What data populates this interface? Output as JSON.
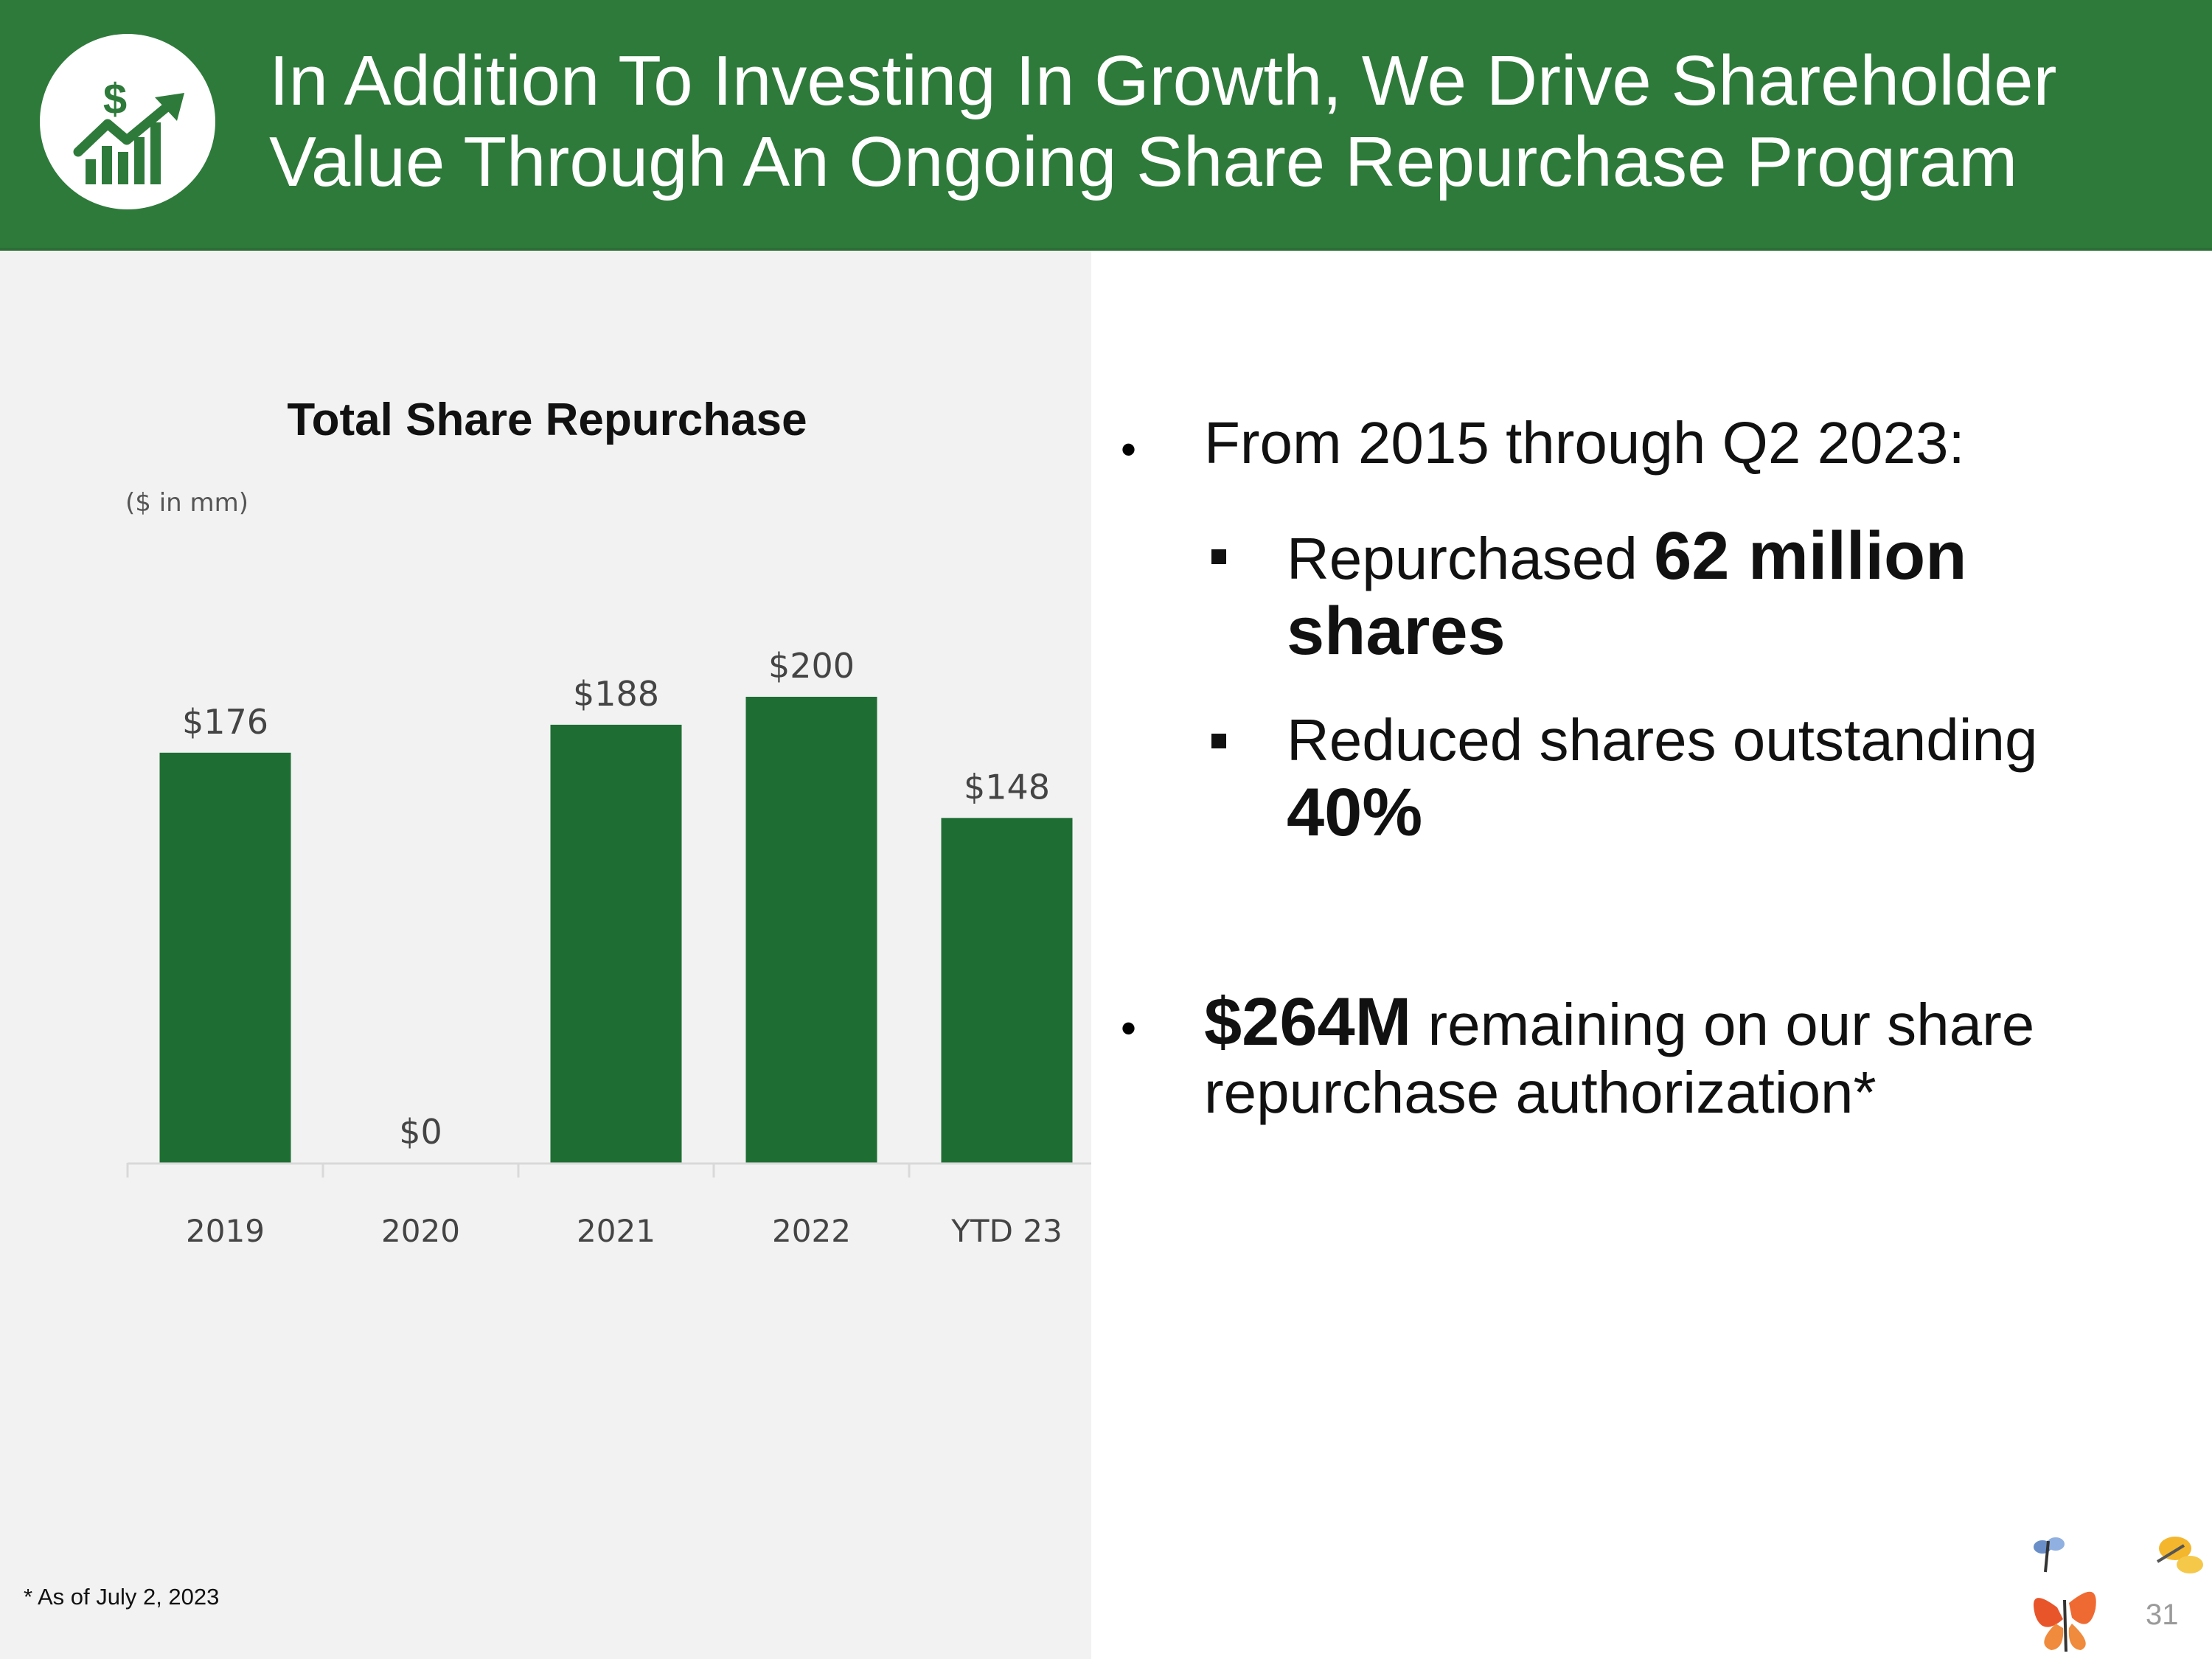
{
  "header": {
    "title_line1": "In Addition To Investing In Growth, We Drive Shareholder",
    "title_line2": "Value Through An Ongoing Share Repurchase Program",
    "logo_icon": "growth-chart-dollar-icon",
    "background_color": "#2e7a3a"
  },
  "chart_data": {
    "type": "bar",
    "title": "Total Share Repurchase",
    "unit_label": "($ in mm)",
    "categories": [
      "2019",
      "2020",
      "2021",
      "2022",
      "YTD 23"
    ],
    "values": [
      176,
      0,
      188,
      200,
      148
    ],
    "data_labels": [
      "$176",
      "$0",
      "$188",
      "$200",
      "$148"
    ],
    "bar_color": "#1e6e33",
    "xlabel": "",
    "ylabel": "",
    "ylim": [
      0,
      200
    ],
    "grid": false
  },
  "bullets": {
    "b1": "From 2015 through Q2 2023:",
    "s1_prefix": "Repurchased ",
    "s1_bold": "62 million shares",
    "s2_prefix": "Reduced shares outstanding ",
    "s2_bold": "40%",
    "b2_bold": "$264M",
    "b2_suffix": " remaining on our share repurchase authorization*"
  },
  "footnote": "* As of July 2, 2023",
  "page_number": "31",
  "decor": {
    "icon": "butterflies-icon"
  }
}
